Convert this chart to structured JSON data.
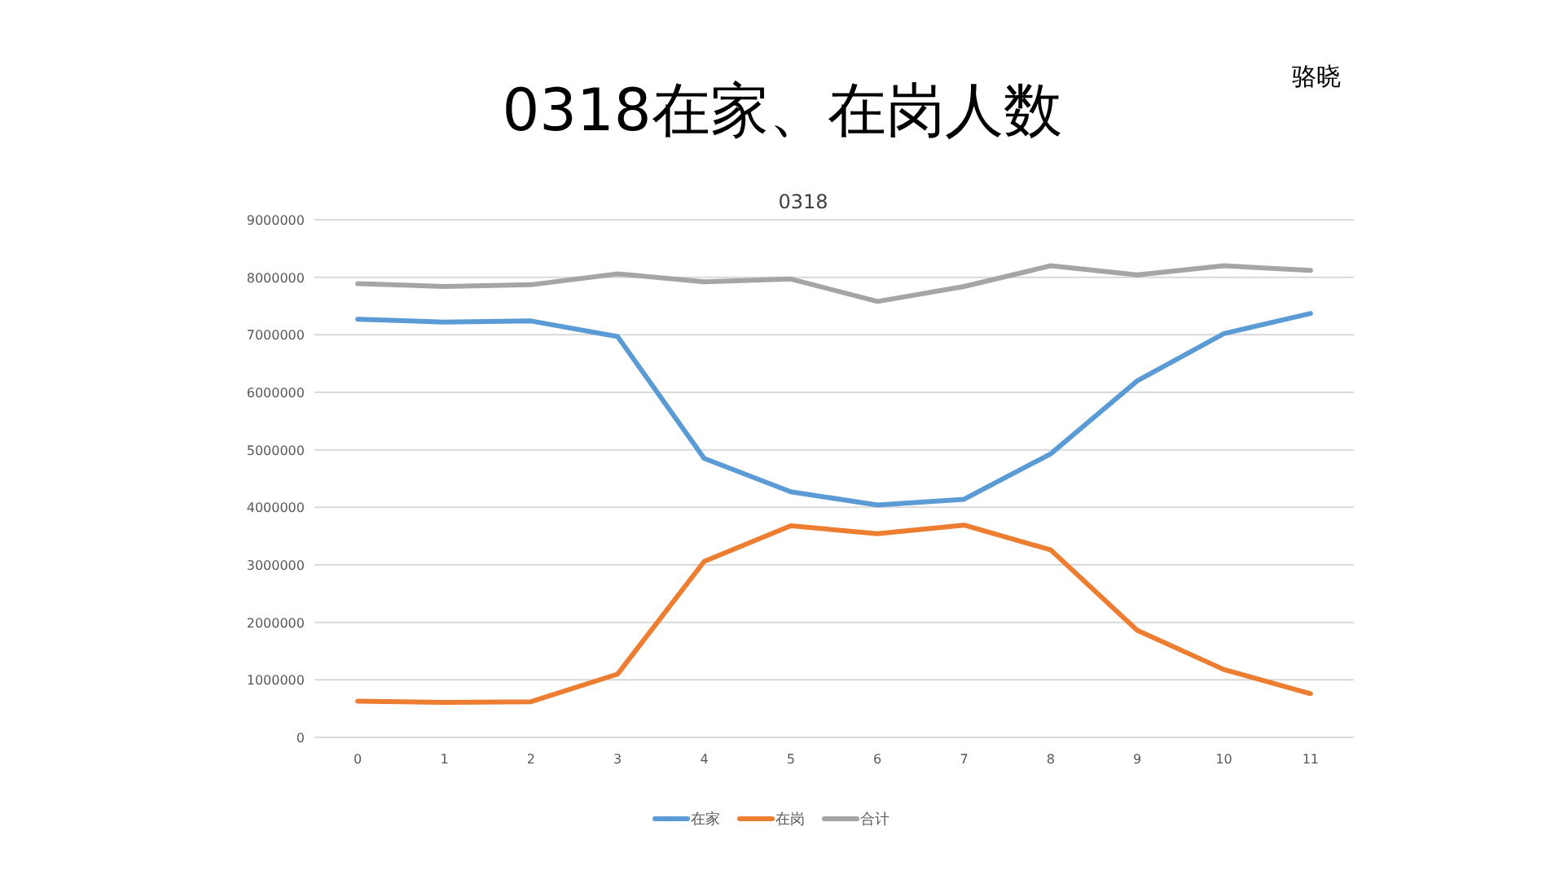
{
  "chart_data": {
    "type": "line",
    "title": "0318在家、在岗人数",
    "subtitle": "0318",
    "annotations": [
      "骆晓"
    ],
    "categories": [
      "0",
      "1",
      "2",
      "3",
      "4",
      "5",
      "6",
      "7",
      "8",
      "9",
      "10",
      "11"
    ],
    "series": [
      {
        "name": "在家",
        "color": "#5b9bd5",
        "values": [
          7270000,
          7220000,
          7240000,
          6970000,
          4850000,
          4270000,
          4040000,
          4140000,
          4930000,
          6200000,
          7020000,
          7370000
        ]
      },
      {
        "name": "在岗",
        "color": "#ed7d31",
        "values": [
          630000,
          610000,
          620000,
          1100000,
          3060000,
          3680000,
          3540000,
          3690000,
          3260000,
          1860000,
          1180000,
          760000
        ]
      },
      {
        "name": "合计",
        "color": "#a5a5a5",
        "values": [
          7890000,
          7840000,
          7870000,
          8060000,
          7920000,
          7970000,
          7580000,
          7840000,
          8200000,
          8040000,
          8200000,
          8120000
        ]
      }
    ],
    "ylim": [
      0,
      9000000
    ],
    "yticks": [
      0,
      1000000,
      2000000,
      3000000,
      4000000,
      5000000,
      6000000,
      7000000,
      8000000,
      9000000
    ],
    "grid": "y",
    "legend": "bottom"
  }
}
